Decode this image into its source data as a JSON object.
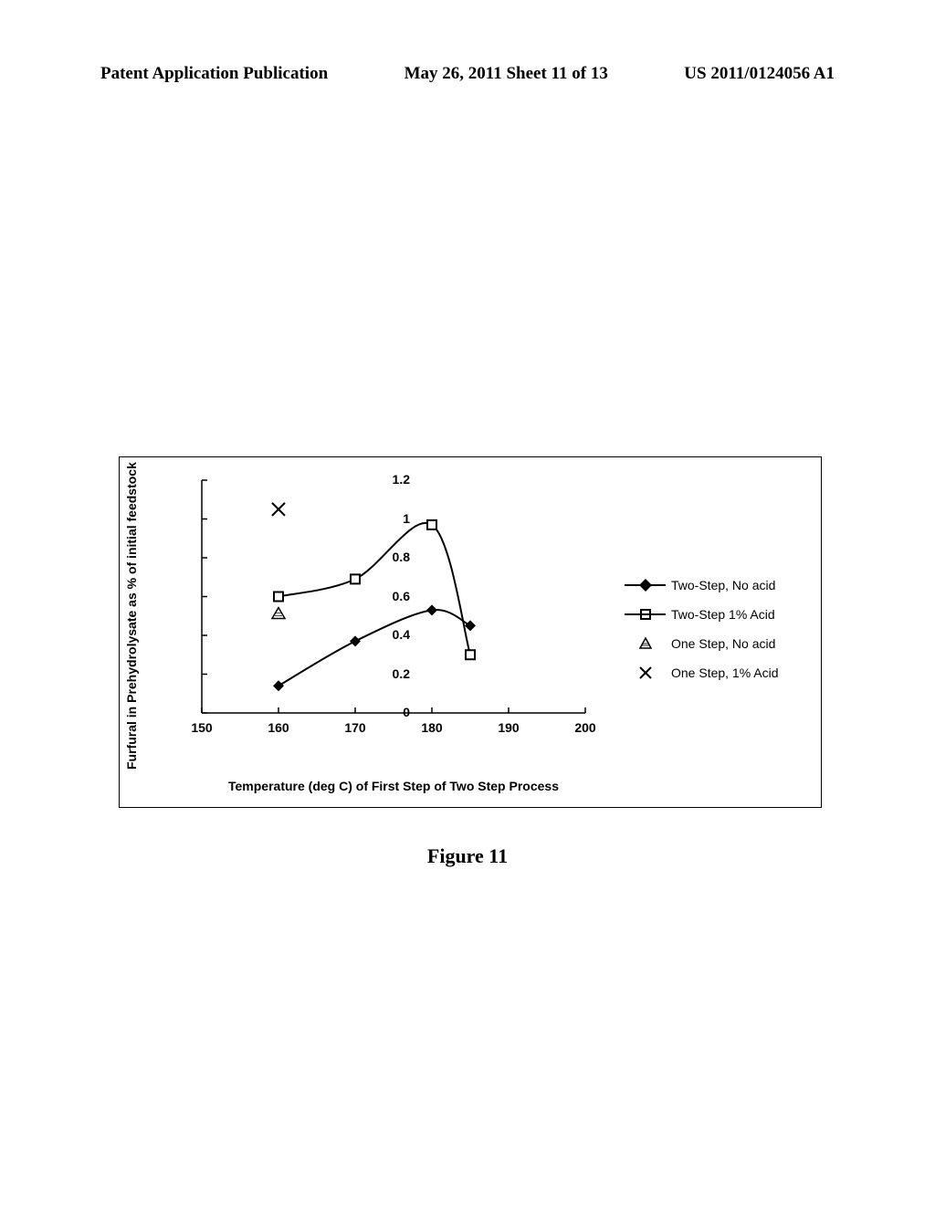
{
  "header": {
    "left": "Patent Application Publication",
    "center": "May 26, 2011  Sheet 11 of 13",
    "right": "US 2011/0124056 A1"
  },
  "chart": {
    "ylabel": "Furfural in Prehydrolysate as % of initial feedstock",
    "xlabel": "Temperature (deg C) of First Step of Two Step Process",
    "xlim": [
      150,
      200
    ],
    "ylim": [
      0,
      1.2
    ],
    "xticks": [
      150,
      160,
      170,
      180,
      190,
      200
    ],
    "yticks": [
      0,
      0.2,
      0.4,
      0.6,
      0.8,
      1,
      1.2
    ],
    "series": {
      "two_step_no_acid": {
        "label": "Two-Step, No acid",
        "points": [
          {
            "x": 160,
            "y": 0.14
          },
          {
            "x": 170,
            "y": 0.37
          },
          {
            "x": 180,
            "y": 0.53
          },
          {
            "x": 185,
            "y": 0.45
          }
        ]
      },
      "two_step_acid": {
        "label": "Two-Step 1% Acid",
        "points": [
          {
            "x": 160,
            "y": 0.6
          },
          {
            "x": 170,
            "y": 0.69
          },
          {
            "x": 180,
            "y": 0.97
          },
          {
            "x": 185,
            "y": 0.3
          }
        ]
      },
      "one_step_no_acid": {
        "label": "One Step, No acid",
        "point": {
          "x": 160,
          "y": 0.51
        }
      },
      "one_step_acid": {
        "label": "One Step, 1% Acid",
        "point": {
          "x": 160,
          "y": 1.05
        }
      }
    },
    "legend_order": [
      "two_step_no_acid",
      "two_step_acid",
      "one_step_no_acid",
      "one_step_acid"
    ],
    "marker_color": "#000000",
    "line_color": "#000000",
    "line_width": 2
  },
  "figure_caption": "Figure 11"
}
